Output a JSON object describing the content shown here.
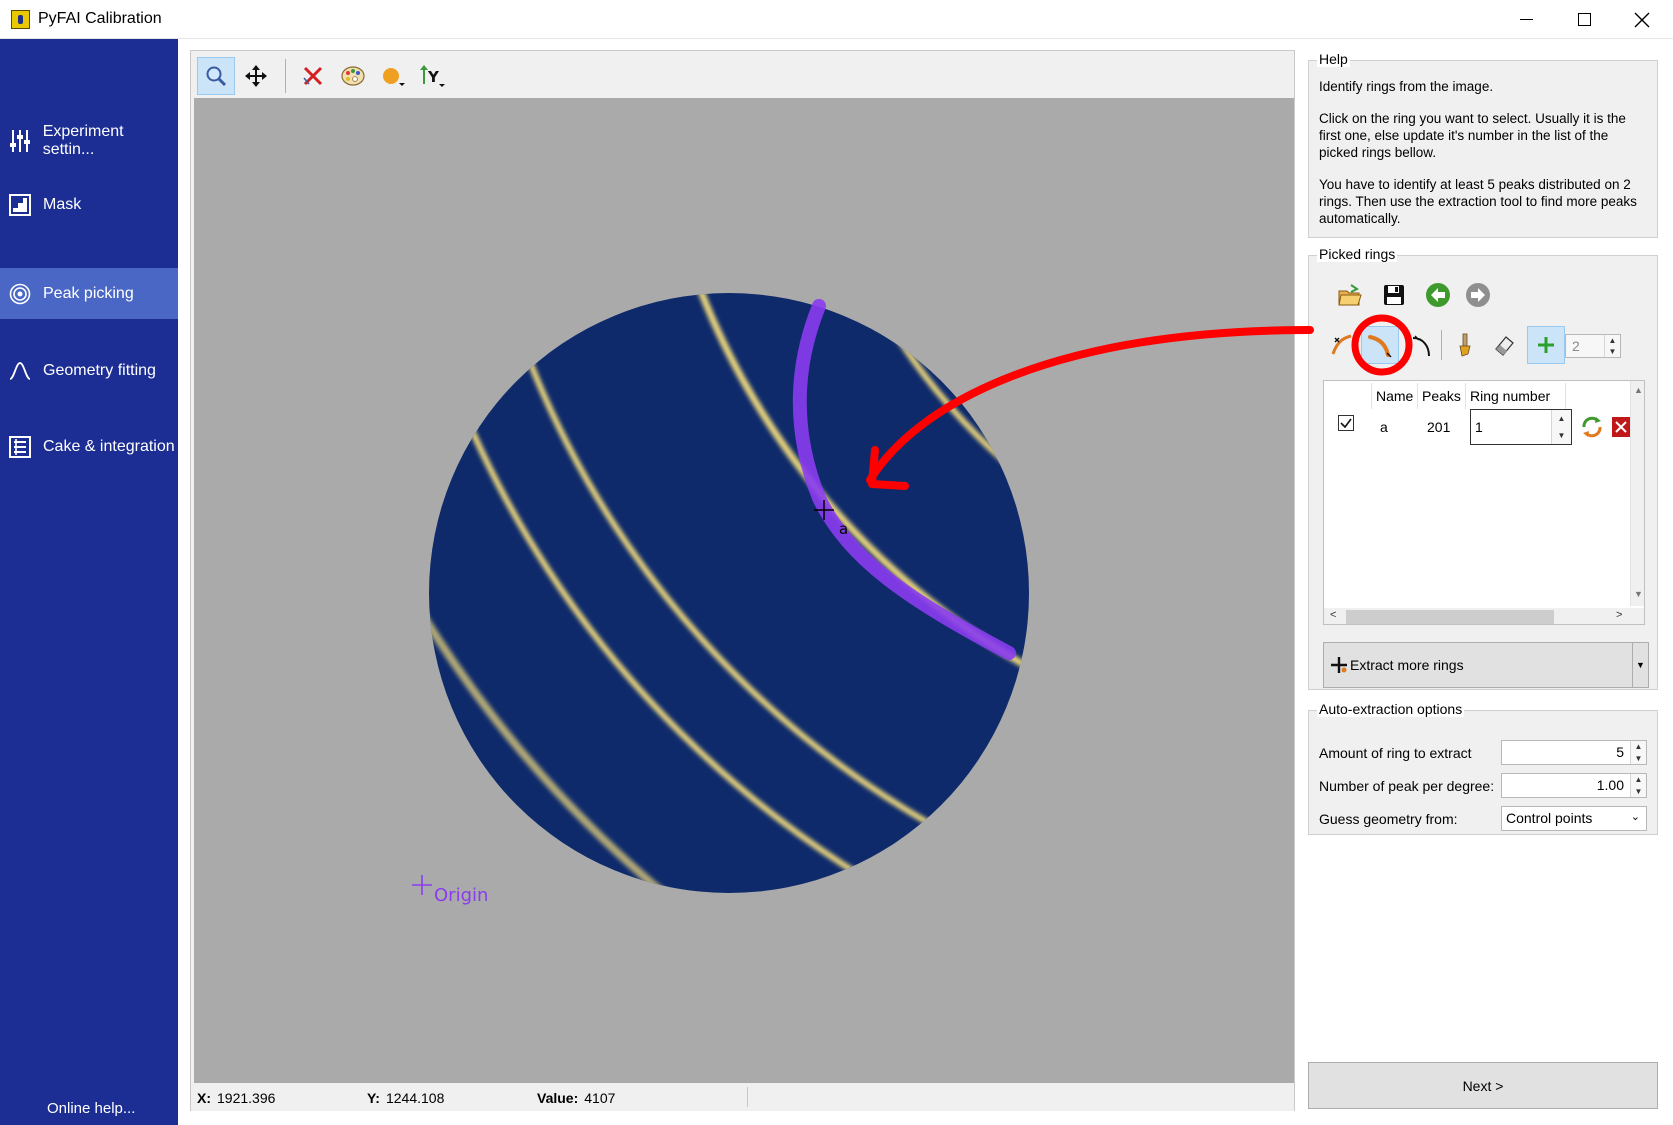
{
  "window": {
    "title": "PyFAI Calibration"
  },
  "sidebar": {
    "items": [
      {
        "label": "Experiment settin...",
        "icon": "sliders-icon"
      },
      {
        "label": "Mask",
        "icon": "mask-icon"
      },
      {
        "label": "Peak picking",
        "icon": "target-icon",
        "active": true
      },
      {
        "label": "Geometry fitting",
        "icon": "curve-icon"
      },
      {
        "label": "Cake & integration",
        "icon": "document-list-icon"
      }
    ],
    "online_help": "Online help..."
  },
  "plot": {
    "origin_label": "Origin",
    "peak_label": "a"
  },
  "status": {
    "x_label": "X:",
    "x_value": "1921.396",
    "y_label": "Y:",
    "y_value": "1244.108",
    "value_label": "Value:",
    "value_value": "4107"
  },
  "help": {
    "title": "Help",
    "p1": "Identify rings from the image.",
    "p2": "Click on the ring you want to select. Usually it is the first one, else update it's number in the list of the picked rings bellow.",
    "p3": "You have to identify at least 5 peaks distributed on 2 rings. Then use the extraction tool to find more peaks automatically."
  },
  "picked_rings": {
    "title": "Picked rings",
    "spin_value": "2",
    "columns": [
      "Name",
      "Peaks",
      "Ring number"
    ],
    "rows": [
      {
        "name": "a",
        "peaks": "201",
        "ring_number": "1",
        "checked": true
      }
    ],
    "extract_label": "Extract more rings"
  },
  "auto_extraction": {
    "title": "Auto-extraction options",
    "amount_label": "Amount of ring to extract",
    "amount_value": "5",
    "peak_per_degree_label": "Number of peak per degree:",
    "peak_per_degree_value": "1.00",
    "guess_label": "Guess geometry from:",
    "guess_value": "Control points"
  },
  "next_label": "Next >",
  "colors": {
    "sidebar": "#1c2d94",
    "sidebar_active": "#4a67c5",
    "detector": "#0e2a6b",
    "ring": "#e8d37a",
    "picked": "#8a3cf0",
    "annotation": "#ff0000"
  }
}
